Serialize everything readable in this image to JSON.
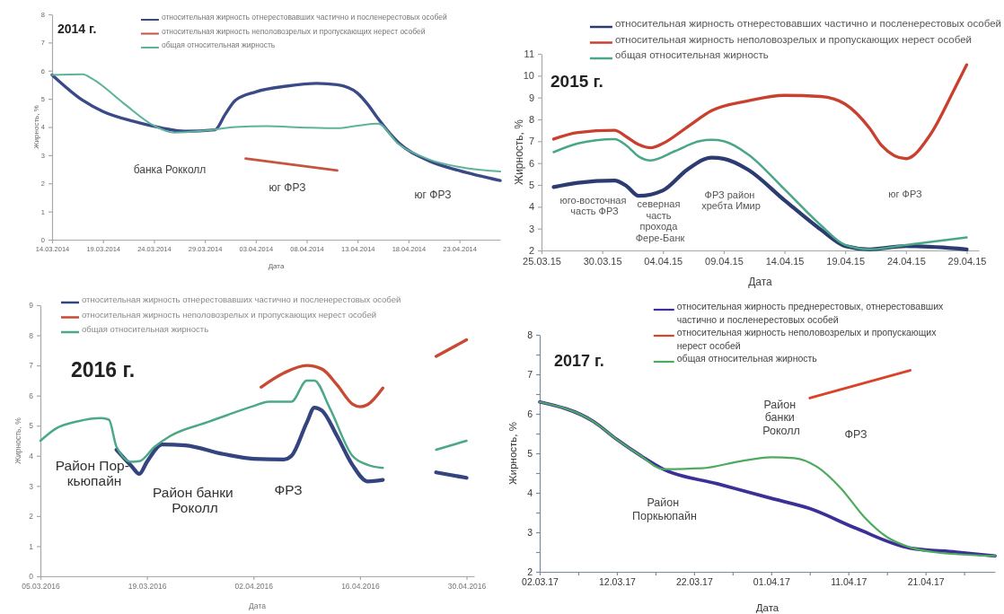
{
  "chart_data": [
    {
      "type": "line",
      "title": "2014 г.",
      "xlabel": "Дата",
      "ylabel": "Жирность, %",
      "legend": "top",
      "xlim": [
        "2014-03-14",
        "2014-04-27"
      ],
      "xticks": [
        {
          "value": "2014-03-14",
          "label": "14.03.2014"
        },
        {
          "value": "2014-03-19",
          "label": "19.03.2014"
        },
        {
          "value": "2014-03-24",
          "label": "24.03.2014"
        },
        {
          "value": "2014-03-29",
          "label": "29.03.2014"
        },
        {
          "value": "2014-04-03",
          "label": "03.04.2014"
        },
        {
          "value": "2014-04-08",
          "label": "08.04.2014"
        },
        {
          "value": "2014-04-13",
          "label": "13.04.2014"
        },
        {
          "value": "2014-04-18",
          "label": "18.04.2014"
        },
        {
          "value": "2014-04-23",
          "label": "23.04.2014"
        }
      ],
      "ylim": [
        0,
        8
      ],
      "yticks": [
        0,
        1,
        2,
        3,
        4,
        5,
        6,
        7,
        8
      ],
      "series": [
        {
          "name": "относительная жирность отнерестовавших частично и посленерестовых особей",
          "color": "#3a4a86",
          "x": [
            "2014-03-14",
            "2014-03-17",
            "2014-03-19",
            "2014-03-22",
            "2014-03-25",
            "2014-03-27",
            "2014-03-30",
            "2014-03-31",
            "2014-04-01",
            "2014-04-03",
            "2014-04-06",
            "2014-04-09",
            "2014-04-11",
            "2014-04-13",
            "2014-04-14",
            "2014-04-15",
            "2014-04-17",
            "2014-04-20",
            "2014-04-23",
            "2014-04-27"
          ],
          "values": [
            5.85,
            4.95,
            4.55,
            4.2,
            3.95,
            3.85,
            3.9,
            4.45,
            4.95,
            5.25,
            5.45,
            5.55,
            5.5,
            5.2,
            4.8,
            4.3,
            3.45,
            2.8,
            2.45,
            2.1
          ]
        },
        {
          "name": "относительная жирность неполовозрелых и пропускающих нерест особей",
          "color": "#c4553e",
          "x": [
            "2014-04-02",
            "2014-04-11"
          ],
          "values": [
            2.88,
            2.46
          ]
        },
        {
          "name": "общая относительная жирность",
          "color": "#5eb39a",
          "x": [
            "2014-03-14",
            "2014-03-17",
            "2014-03-18",
            "2014-03-21",
            "2014-03-24",
            "2014-03-26",
            "2014-03-29",
            "2014-04-01",
            "2014-04-04",
            "2014-04-08",
            "2014-04-11",
            "2014-04-13",
            "2014-04-15",
            "2014-04-17",
            "2014-04-20",
            "2014-04-23",
            "2014-04-27"
          ],
          "values": [
            5.85,
            5.87,
            5.7,
            4.85,
            4.05,
            3.8,
            3.87,
            4.0,
            4.03,
            3.98,
            3.96,
            4.05,
            4.12,
            3.4,
            2.85,
            2.58,
            2.42
          ]
        }
      ],
      "annotations": [
        "банка Рокколл",
        "юг ФРЗ",
        "юг ФРЗ"
      ]
    },
    {
      "type": "line",
      "title": "2015 г.",
      "xlabel": "Дата",
      "ylabel": "Жирность, %",
      "legend": "top right",
      "xlim": [
        "2015-03-25",
        "2015-04-30"
      ],
      "xticks": [
        {
          "value": "2015-03-25",
          "label": "25.03.15"
        },
        {
          "value": "2015-03-30",
          "label": "30.03.15"
        },
        {
          "value": "2015-04-04",
          "label": "04.04.15"
        },
        {
          "value": "2015-04-09",
          "label": "09.04.15"
        },
        {
          "value": "2015-04-14",
          "label": "14.04.15"
        },
        {
          "value": "2015-04-19",
          "label": "19.04.15"
        },
        {
          "value": "2015-04-24",
          "label": "24.04.15"
        },
        {
          "value": "2015-04-29",
          "label": "29.04.15"
        }
      ],
      "ylim": [
        2,
        11
      ],
      "yticks": [
        2,
        3,
        4,
        5,
        6,
        7,
        8,
        9,
        10,
        11
      ],
      "series": [
        {
          "name": "относительная жирность отнерестовавших частично и посленерестовых особей",
          "color": "#2c3c70",
          "x": [
            "2015-03-26",
            "2015-03-28",
            "2015-03-31",
            "2015-04-01",
            "2015-04-02",
            "2015-04-04",
            "2015-04-06",
            "2015-04-08",
            "2015-04-09",
            "2015-04-11",
            "2015-04-14",
            "2015-04-17",
            "2015-04-19",
            "2015-04-21",
            "2015-04-24",
            "2015-04-29"
          ],
          "values": [
            4.9,
            5.1,
            5.2,
            4.95,
            4.5,
            4.75,
            5.7,
            6.25,
            6.2,
            5.7,
            4.3,
            2.95,
            2.2,
            2.05,
            2.2,
            2.05
          ]
        },
        {
          "name": "относительная жирность неполовозрелых и пропускающих нерест особей",
          "color": "#c9402f",
          "x": [
            "2015-03-26",
            "2015-03-28",
            "2015-03-31",
            "2015-04-01",
            "2015-04-02",
            "2015-04-03",
            "2015-04-04",
            "2015-04-06",
            "2015-04-08",
            "2015-04-11",
            "2015-04-14",
            "2015-04-17",
            "2015-04-19",
            "2015-04-21",
            "2015-04-22",
            "2015-04-24",
            "2015-04-26",
            "2015-04-28",
            "2015-04-29"
          ],
          "values": [
            7.1,
            7.4,
            7.5,
            7.2,
            6.85,
            6.7,
            6.9,
            7.65,
            8.4,
            8.85,
            9.1,
            9.05,
            8.7,
            7.6,
            6.8,
            6.2,
            7.3,
            9.4,
            10.5
          ]
        },
        {
          "name": "общая относительная жирность",
          "color": "#4aa688",
          "x": [
            "2015-03-26",
            "2015-03-28",
            "2015-03-31",
            "2015-04-01",
            "2015-04-02",
            "2015-04-03",
            "2015-04-05",
            "2015-04-07",
            "2015-04-08",
            "2015-04-09",
            "2015-04-11",
            "2015-04-14",
            "2015-04-17",
            "2015-04-19",
            "2015-04-21",
            "2015-04-24",
            "2015-04-29"
          ],
          "values": [
            6.5,
            6.9,
            7.1,
            6.8,
            6.3,
            6.12,
            6.55,
            7.0,
            7.06,
            7.0,
            6.4,
            4.8,
            3.15,
            2.25,
            2.05,
            2.25,
            2.6
          ]
        }
      ],
      "annotations": [
        "юго-восточная\nчасть ФРЗ",
        "северная\nчасть\nпрохода\nФере-Банк",
        "ФРЗ район\nхребта Имир",
        "юг ФРЗ"
      ]
    },
    {
      "type": "line",
      "title": "2016 г.",
      "xlabel": "Дата",
      "ylabel": "Жирность, %",
      "legend": "top left",
      "xlim": [
        "2016-03-05",
        "2016-05-01"
      ],
      "xticks": [
        {
          "value": "2016-03-05",
          "label": "05.03.2016"
        },
        {
          "value": "2016-03-19",
          "label": "19.03.2016"
        },
        {
          "value": "2016-04-02",
          "label": "02.04.2016"
        },
        {
          "value": "2016-04-16",
          "label": "16.04.2016"
        },
        {
          "value": "2016-04-30",
          "label": "30.04.2016"
        }
      ],
      "ylim": [
        0,
        9
      ],
      "yticks": [
        0,
        1,
        2,
        3,
        4,
        5,
        6,
        7,
        8,
        9
      ],
      "series": [
        {
          "name": "относительная жирность отнерестовавших частично и посленерестовых особей",
          "color": "#34447e",
          "x": [
            "2016-03-15",
            "2016-03-17",
            "2016-03-18",
            "2016-03-19",
            "2016-03-21",
            "2016-03-24",
            "2016-03-29",
            "2016-04-02",
            "2016-04-06",
            "2016-04-07",
            "2016-04-09",
            "2016-04-10",
            "2016-04-11",
            "2016-04-13",
            "2016-04-15",
            "2016-04-17",
            "2016-04-19",
            "2016-04-22",
            "2016-04-26",
            "2016-04-30"
          ],
          "values": [
            4.2,
            3.65,
            3.4,
            3.8,
            4.38,
            4.35,
            4.06,
            3.9,
            3.88,
            4.0,
            5.1,
            5.6,
            5.5,
            4.65,
            3.7,
            3.15,
            3.2,
            null,
            3.45,
            3.27
          ]
        },
        {
          "name": "относительная жирность неполовозрелых и пропускающих нерест особей",
          "color": "#c94a33",
          "x": [
            "2016-04-03",
            "2016-04-06",
            "2016-04-09",
            "2016-04-11",
            "2016-04-13",
            "2016-04-15",
            "2016-04-16",
            "2016-04-17",
            "2016-04-19",
            "2016-04-22",
            "2016-04-26",
            "2016-04-30"
          ],
          "values": [
            6.28,
            6.75,
            7.0,
            6.88,
            6.35,
            5.72,
            5.63,
            5.7,
            6.25,
            null,
            7.3,
            7.85
          ]
        },
        {
          "name": "общая относительная жирность",
          "color": "#4ca987",
          "x": [
            "2016-03-05",
            "2016-03-07",
            "2016-03-10",
            "2016-03-13",
            "2016-03-14",
            "2016-03-15",
            "2016-03-17",
            "2016-03-18",
            "2016-03-20",
            "2016-03-22",
            "2016-03-27",
            "2016-04-02",
            "2016-04-04",
            "2016-04-07",
            "2016-04-09",
            "2016-04-10",
            "2016-04-12",
            "2016-04-15",
            "2016-04-17",
            "2016-04-19",
            "2016-04-22",
            "2016-04-26",
            "2016-04-30"
          ],
          "values": [
            4.5,
            4.9,
            5.15,
            5.25,
            5.2,
            4.3,
            3.8,
            3.82,
            4.3,
            4.65,
            5.12,
            5.65,
            5.8,
            5.8,
            6.5,
            6.5,
            5.6,
            4.0,
            3.7,
            3.6,
            null,
            4.2,
            4.5
          ]
        }
      ],
      "annotations": [
        "Район Пор-\nкьюпайн",
        "Район банки\nРоколл",
        "ФРЗ"
      ]
    },
    {
      "type": "line",
      "title": "2017 г.",
      "xlabel": "Дата",
      "ylabel": "Жирность, %",
      "legend": "top",
      "xlim": [
        "2017-03-02",
        "2017-04-30"
      ],
      "xticks": [
        {
          "value": "2017-03-02",
          "label": "02.03.17"
        },
        {
          "value": "2017-03-07",
          "label": null
        },
        {
          "value": "2017-03-12",
          "label": "12.03.17"
        },
        {
          "value": "2017-03-17",
          "label": null
        },
        {
          "value": "2017-03-22",
          "label": "22.03.17"
        },
        {
          "value": "2017-03-27",
          "label": null
        },
        {
          "value": "2017-04-01",
          "label": "01.04.17"
        },
        {
          "value": "2017-04-06",
          "label": null
        },
        {
          "value": "2017-04-11",
          "label": "11.04.17"
        },
        {
          "value": "2017-04-16",
          "label": null
        },
        {
          "value": "2017-04-21",
          "label": "21.04.17"
        },
        {
          "value": "2017-04-26",
          "label": null
        }
      ],
      "ylim": [
        2,
        8
      ],
      "yticks": [
        2,
        {
          "value": 2.5,
          "label": null
        },
        3,
        {
          "value": 3.5,
          "label": null
        },
        4,
        {
          "value": 4.5,
          "label": null
        },
        5,
        {
          "value": 5.5,
          "label": null
        },
        6,
        {
          "value": 6.5,
          "label": null
        },
        7,
        {
          "value": 7.5,
          "label": null
        },
        8
      ],
      "series": [
        {
          "name": "относительная жирность преднерестовых, отнерестовавших частично и посленерестовых особей",
          "color": "#3b2f98",
          "x": [
            "2017-03-02",
            "2017-03-09",
            "2017-03-12",
            "2017-03-15",
            "2017-03-18",
            "2017-03-25",
            "2017-04-01",
            "2017-04-06",
            "2017-04-12",
            "2017-04-19",
            "2017-04-25",
            "2017-04-30"
          ],
          "values": [
            6.3,
            5.8,
            5.35,
            4.95,
            4.6,
            4.23,
            3.86,
            3.6,
            3.1,
            2.6,
            2.5,
            2.4
          ]
        },
        {
          "name": "относительная жирность неполовозрелых и пропускающих нерест особей",
          "color": "#d8432a",
          "x": [
            "2017-04-06",
            "2017-04-19"
          ],
          "values": [
            6.4,
            7.1
          ]
        },
        {
          "name": "общая относительная жирность",
          "color": "#4eaa5c",
          "x": [
            "2017-03-02",
            "2017-03-09",
            "2017-03-12",
            "2017-03-15",
            "2017-03-18",
            "2017-03-23",
            "2017-03-28",
            "2017-04-01",
            "2017-04-04",
            "2017-04-07",
            "2017-04-10",
            "2017-04-13",
            "2017-04-16",
            "2017-04-19",
            "2017-04-22",
            "2017-04-30"
          ],
          "values": [
            6.3,
            5.8,
            5.35,
            4.95,
            4.6,
            4.62,
            4.8,
            4.9,
            4.88,
            4.65,
            4.12,
            3.4,
            2.88,
            2.62,
            2.5,
            2.4
          ]
        }
      ],
      "annotations": [
        "Район\nПоркьюпайн",
        "Район\nбанки\nРоколл",
        "ФРЗ"
      ]
    }
  ]
}
